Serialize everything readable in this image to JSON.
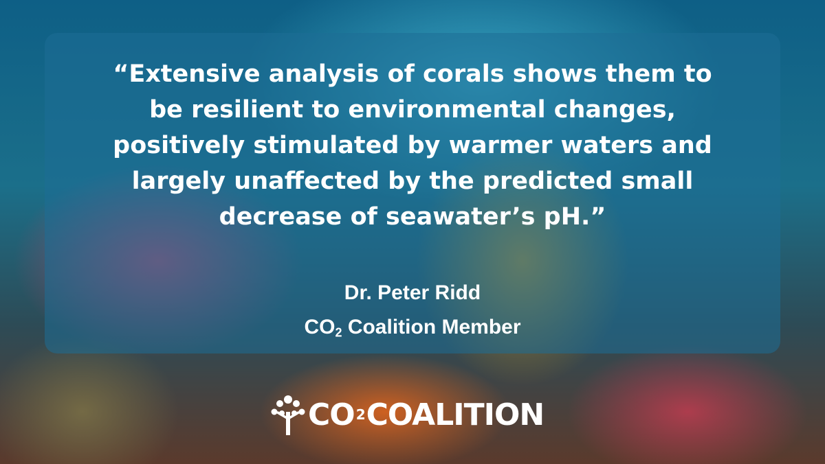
{
  "quote": {
    "lines": [
      "“Extensive analysis of corals shows them to",
      "be resilient to environmental changes,",
      "positively stimulated by warmer waters and",
      "largely unaffected by the predicted small",
      "decrease of seawater’s pH.”"
    ]
  },
  "attribution": {
    "name": "Dr. Peter Ridd",
    "affiliation": {
      "prefix": "CO",
      "subscript": "2",
      "suffix": " Coalition Member"
    }
  },
  "logo": {
    "prefix": "CO",
    "subscript": "2",
    "suffix": "COALITION"
  }
}
